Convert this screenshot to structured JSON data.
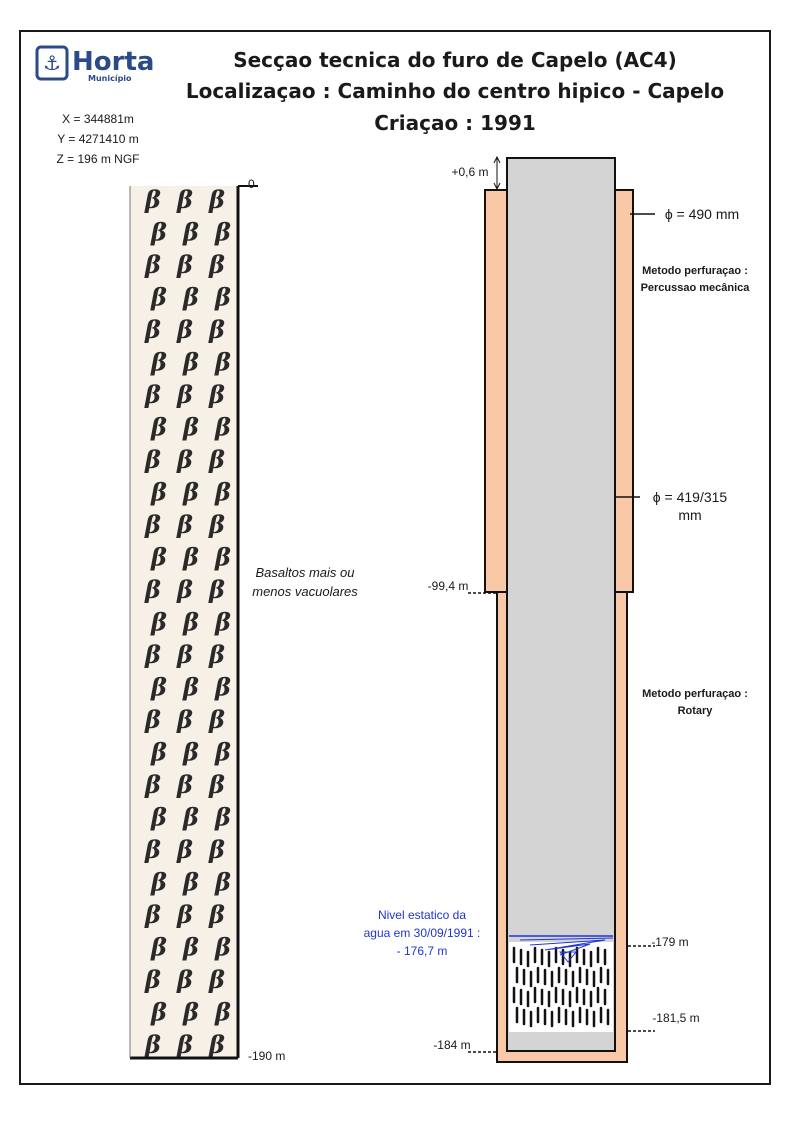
{
  "logo": {
    "name": "Horta",
    "sub": "Município",
    "accent": "#2a4a8a"
  },
  "title": {
    "line1": "Secçao tecnica do furo de Capelo (AC4)",
    "line2": "Localizaçao : Caminho do centro hipico - Capelo",
    "line3": "Criaçao : 1991"
  },
  "coordinates": {
    "x": "X = 344881m",
    "y": "Y = 4271410 m",
    "z": "Z = 196 m NGF"
  },
  "lithology": {
    "top_label": "0",
    "bottom_label": "-190 m",
    "description_line1": "Basaltos mais ou",
    "description_line2": "menos vacuolares",
    "fill_color": "#f7f0e6",
    "symbol": "β"
  },
  "well": {
    "top_extension": "+0,6 m",
    "diameter_top": "ϕ = 490 mm",
    "diameter_mid_line1": "ϕ = 419/315",
    "diameter_mid_line2": "mm",
    "method1_line1": "Metodo perfuraçao :",
    "method1_line2": "Percussao mecânica",
    "method2_line1": "Metodo perfuraçao :",
    "method2_line2": "Rotary",
    "depth_casing_change": "-99,4 m",
    "depth_screen_top": "-179 m",
    "depth_screen_bottom": "-181,5 m",
    "depth_bottom": "-184 m",
    "water_level_line1": "Nivel estatico da",
    "water_level_line2": "agua em 30/09/1991 :",
    "water_level_line3": "- 176,7 m",
    "gravel_color": "#f9c9a7",
    "casing_color": "#d4d4d4",
    "water_color": "#1f35d6"
  }
}
